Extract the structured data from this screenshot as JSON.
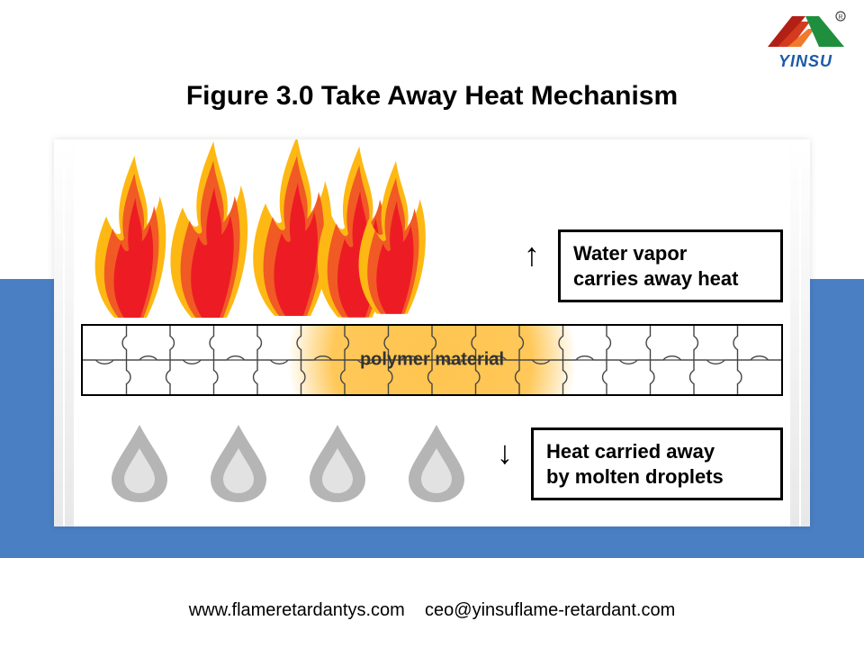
{
  "logo": {
    "text": "YINSU",
    "text_color": "#1a5aa8",
    "left_stripes": [
      "#b22015",
      "#d53a1e",
      "#f07a2c"
    ],
    "right_color": "#1f8f3e"
  },
  "title": {
    "text": "Figure 3.0  Take Away Heat Mechanism",
    "fontsize": 30,
    "color": "#000000"
  },
  "layout": {
    "page_bg": "#ffffff",
    "blue_band_color": "#4a7fc4",
    "diagram_bg": "#ffffff"
  },
  "flames": {
    "count": 5,
    "outer_color": "#fdb813",
    "mid_color": "#f15a24",
    "inner_color": "#ed1c24"
  },
  "polymer": {
    "label": "polymer material",
    "label_fontsize": 20,
    "highlight_color": "#f9b949",
    "border_color": "#000000",
    "puzzle_line_color": "#444444"
  },
  "droplets": {
    "count": 4,
    "fill": "#b5b5b5",
    "highlight": "#e2e2e2"
  },
  "callouts": {
    "top": {
      "line1": "Water vapor",
      "line2": "carries away heat",
      "arrow": "↑"
    },
    "bottom": {
      "line1": "Heat carried away",
      "line2": "by molten droplets",
      "arrow": "↓"
    },
    "border_color": "#000000",
    "fontsize": 22
  },
  "footer": {
    "website": "www.flameretardantys.com",
    "email": "ceo@yinsuflame-retardant.com",
    "fontsize": 20,
    "color": "#333333"
  }
}
